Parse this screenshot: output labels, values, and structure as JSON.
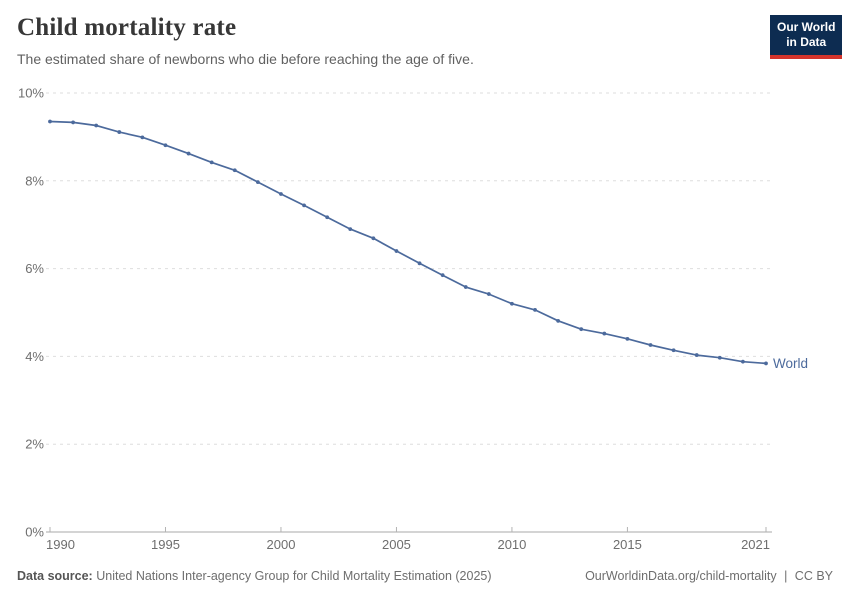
{
  "header": {
    "title": "Child mortality rate",
    "subtitle": "The estimated share of newborns who die before reaching the age of five.",
    "logo": {
      "line1": "Our World",
      "line2": "in Data"
    }
  },
  "chart_data": {
    "type": "line",
    "title": "Child mortality rate",
    "xlabel": "",
    "ylabel": "",
    "xlim": [
      1990,
      2021
    ],
    "ylim": [
      0,
      10
    ],
    "x_ticks": [
      1990,
      1995,
      2000,
      2005,
      2010,
      2015,
      2021
    ],
    "y_ticks": [
      0,
      2,
      4,
      6,
      8,
      10
    ],
    "y_tick_suffix": "%",
    "grid": "horizontal-dashed",
    "legend_position": "end-of-line-label",
    "series": [
      {
        "name": "World",
        "color": "#4c6a9c",
        "x": [
          1990,
          1991,
          1992,
          1993,
          1994,
          1995,
          1996,
          1997,
          1998,
          1999,
          2000,
          2001,
          2002,
          2003,
          2004,
          2005,
          2006,
          2007,
          2008,
          2009,
          2010,
          2011,
          2012,
          2013,
          2014,
          2015,
          2016,
          2017,
          2018,
          2019,
          2020,
          2021
        ],
        "values": [
          9.35,
          9.33,
          9.26,
          9.11,
          8.99,
          8.81,
          8.62,
          8.42,
          8.24,
          7.97,
          7.7,
          7.44,
          7.17,
          6.9,
          6.69,
          6.4,
          6.12,
          5.85,
          5.58,
          5.42,
          5.2,
          5.06,
          4.81,
          4.62,
          4.52,
          4.4,
          4.26,
          4.14,
          4.03,
          3.97,
          3.88,
          3.84
        ]
      }
    ]
  },
  "footer": {
    "source_label": "Data source:",
    "source_text": "United Nations Inter-agency Group for Child Mortality Estimation (2025)",
    "link": "OurWorldinData.org/child-mortality",
    "separator": "|",
    "license": "CC BY"
  },
  "colors": {
    "line": "#4c6a9c",
    "gridline": "#dedede",
    "axis": "#a8a8a8",
    "tick": "#b3b3b3",
    "tick_label": "#6e6e6e",
    "logo_bg": "#0d2c51",
    "logo_bar": "#d4342c"
  }
}
